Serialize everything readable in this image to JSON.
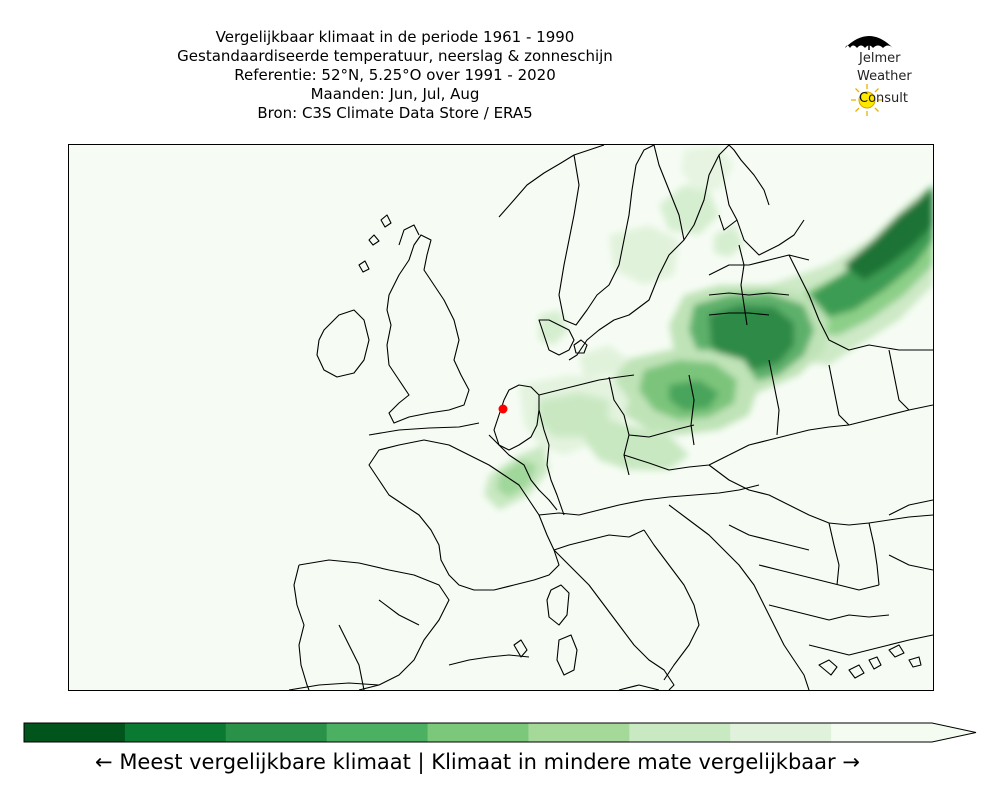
{
  "title": {
    "line1": "Vergelijkbaar klimaat in de periode 1961 - 1990",
    "line2": "Gestandaardiseerde temperatuur, neerslag & zonneschijn",
    "line3": "Referentie: 52°N, 5.25°O over 1991 - 2020",
    "line4": "Maanden: Jun, Jul, Aug",
    "line5": "Bron: C3S Climate Data Store / ERA5"
  },
  "logo": {
    "line1": "Jelmer",
    "line2": "Weather",
    "line3_first": "C",
    "line3_rest": "onsult"
  },
  "map": {
    "reference_point_color": "#ff0000",
    "background_color": "#f6fcf4",
    "reference_lat": 52,
    "reference_lon": 5.25
  },
  "colorbar": {
    "colors": [
      "#00541c",
      "#0a7a33",
      "#2a9148",
      "#4bb062",
      "#7bc87b",
      "#a4d99a",
      "#c8e9c1",
      "#e0f2dc",
      "#f4fbf1"
    ],
    "caption": "← Meest vergelijkbare klimaat  |  Klimaat in mindere mate vergelijkbaar →"
  },
  "icons": {
    "umbrella": "umbrella-icon",
    "sun": "sun-icon"
  }
}
